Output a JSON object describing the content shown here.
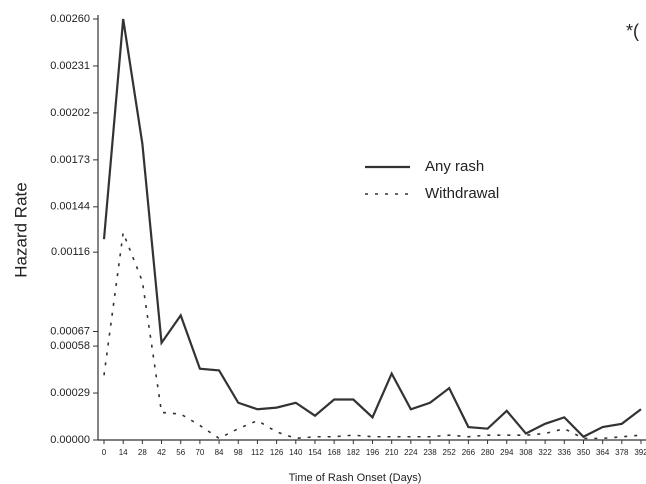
{
  "chart_data": {
    "type": "line",
    "annotation": "*(",
    "xlabel": "Time of Rash Onset (Days)",
    "ylabel": "Hazard Rate",
    "x": [
      0,
      14,
      28,
      42,
      56,
      70,
      84,
      98,
      112,
      126,
      140,
      154,
      168,
      182,
      196,
      210,
      224,
      238,
      252,
      266,
      280,
      294,
      308,
      322,
      336,
      350,
      364,
      378,
      392
    ],
    "series": [
      {
        "name": "Any rash",
        "color": "#333333",
        "dash": "solid",
        "values": [
          0.00124,
          0.0026,
          0.00183,
          0.0006,
          0.00077,
          0.00044,
          0.00043,
          0.00023,
          0.00019,
          0.0002,
          0.00023,
          0.00015,
          0.00025,
          0.00025,
          0.00014,
          0.00041,
          0.00019,
          0.00023,
          0.00032,
          8e-05,
          7e-05,
          0.00018,
          4e-05,
          0.0001,
          0.00014,
          2e-05,
          8e-05,
          0.0001,
          0.00019
        ]
      },
      {
        "name": "Withdrawal",
        "color": "#333333",
        "dash": "dotted",
        "values": [
          0.0004,
          0.00128,
          0.00098,
          0.00017,
          0.00016,
          9e-05,
          1e-05,
          7e-05,
          0.00012,
          5e-05,
          1e-05,
          2e-05,
          2e-05,
          3e-05,
          2e-05,
          2e-05,
          2e-05,
          2e-05,
          3e-05,
          2e-05,
          3e-05,
          3e-05,
          3e-05,
          4e-05,
          7e-05,
          1e-05,
          1e-05,
          2e-05,
          3e-05
        ]
      }
    ],
    "xlim": [
      0,
      392
    ],
    "xticks": [
      0,
      14,
      28,
      42,
      56,
      70,
      84,
      98,
      112,
      126,
      140,
      154,
      168,
      182,
      196,
      210,
      224,
      238,
      252,
      266,
      280,
      294,
      308,
      322,
      336,
      350,
      364,
      378,
      392
    ],
    "ylim": [
      0,
      0.0026
    ],
    "yticks": [
      {
        "value": 0,
        "label": "0.00000"
      },
      {
        "value": 0.00029,
        "label": "0.00029"
      },
      {
        "value": 0.00058,
        "label": "0.00058"
      },
      {
        "value": 0.00067,
        "label": "0.00067"
      },
      {
        "value": 0.00116,
        "label": "0.00116"
      },
      {
        "value": 0.00144,
        "label": "0.00144"
      },
      {
        "value": 0.00173,
        "label": "0.00173"
      },
      {
        "value": 0.00202,
        "label": "0.00202"
      },
      {
        "value": 0.00231,
        "label": "0.00231"
      },
      {
        "value": 0.0026,
        "label": "0.00260"
      }
    ],
    "legend": "upper right"
  }
}
